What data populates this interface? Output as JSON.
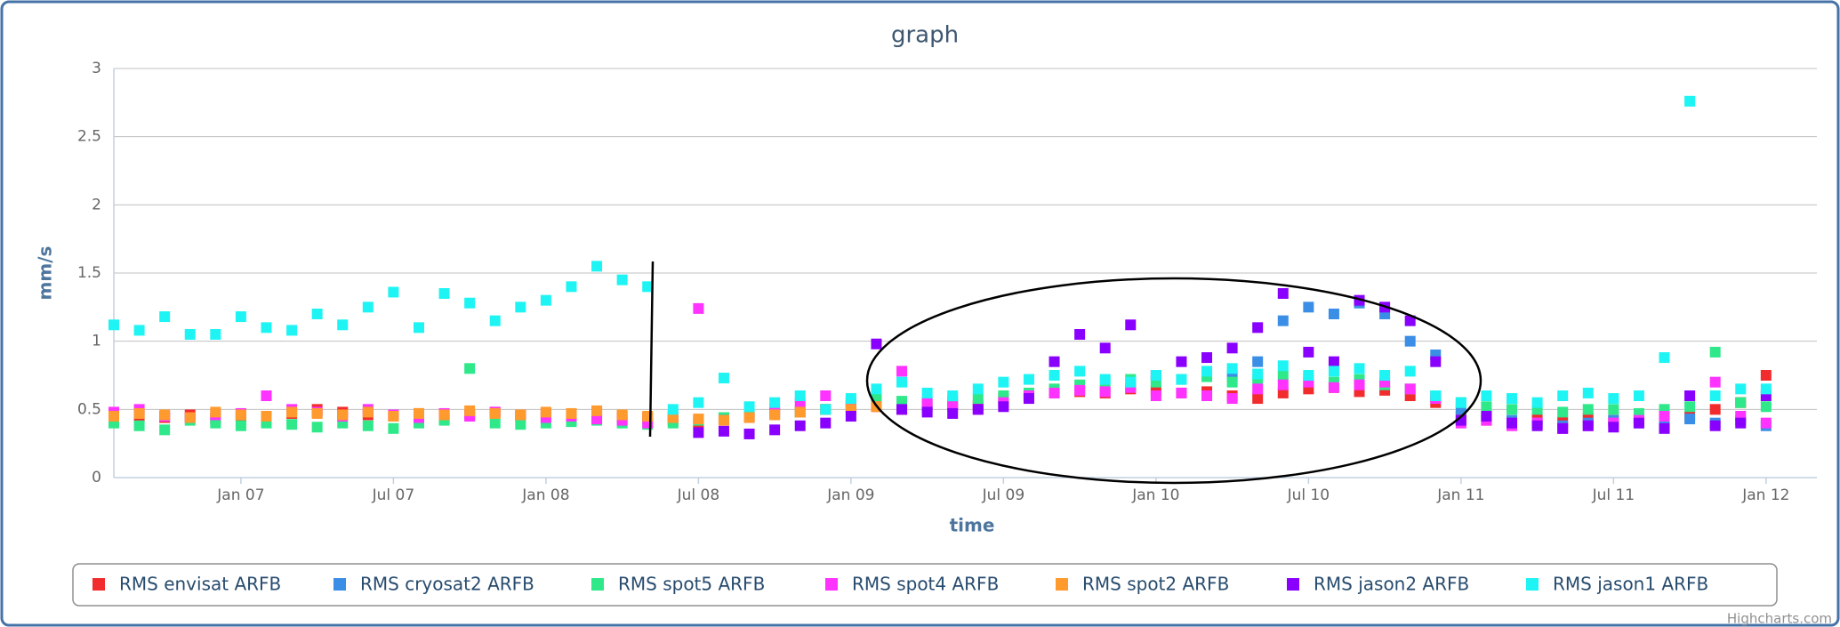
{
  "chart_data": {
    "type": "scatter",
    "title": "graph",
    "x_label": "time",
    "y_label": "mm/s",
    "credit": "Highcharts.com",
    "x": [
      "2006-08",
      "2006-09",
      "2006-10",
      "2006-11",
      "2006-12",
      "2007-01",
      "2007-02",
      "2007-03",
      "2007-04",
      "2007-05",
      "2007-06",
      "2007-07",
      "2007-08",
      "2007-09",
      "2007-10",
      "2007-11",
      "2007-12",
      "2008-01",
      "2008-02",
      "2008-03",
      "2008-04",
      "2008-05",
      "2008-06",
      "2008-07",
      "2008-08",
      "2008-09",
      "2008-10",
      "2008-11",
      "2008-12",
      "2009-01",
      "2009-02",
      "2009-03",
      "2009-04",
      "2009-05",
      "2009-06",
      "2009-07",
      "2009-08",
      "2009-09",
      "2009-10",
      "2009-11",
      "2009-12",
      "2010-01",
      "2010-02",
      "2010-03",
      "2010-04",
      "2010-05",
      "2010-06",
      "2010-07",
      "2010-08",
      "2010-09",
      "2010-10",
      "2010-11",
      "2010-12",
      "2011-01",
      "2011-02",
      "2011-03",
      "2011-04",
      "2011-05",
      "2011-06",
      "2011-07",
      "2011-08",
      "2011-09",
      "2011-10",
      "2011-11",
      "2011-12",
      "2012-01"
    ],
    "xlim": [
      "2006-08",
      "2012-03"
    ],
    "xticks": [
      {
        "value": "2007-01",
        "label": "Jan 07"
      },
      {
        "value": "2007-07",
        "label": "Jul 07"
      },
      {
        "value": "2008-01",
        "label": "Jan 08"
      },
      {
        "value": "2008-07",
        "label": "Jul 08"
      },
      {
        "value": "2009-01",
        "label": "Jan 09"
      },
      {
        "value": "2009-07",
        "label": "Jul 09"
      },
      {
        "value": "2010-01",
        "label": "Jan 10"
      },
      {
        "value": "2010-07",
        "label": "Jul 10"
      },
      {
        "value": "2011-01",
        "label": "Jan 11"
      },
      {
        "value": "2011-07",
        "label": "Jul 11"
      },
      {
        "value": "2012-01",
        "label": "Jan 12"
      }
    ],
    "ylim": [
      0,
      3
    ],
    "yticks": [
      0,
      0.5,
      1,
      1.5,
      2,
      2.5,
      3
    ],
    "grid": true,
    "legend": "bottom",
    "series": [
      {
        "name": "RMS envisat ARFB",
        "color": "#f22c2c",
        "values": [
          0.42,
          0.45,
          0.44,
          0.46,
          0.43,
          0.45,
          0.44,
          0.47,
          0.5,
          0.48,
          0.46,
          0.45,
          0.47,
          0.44,
          0.46,
          0.48,
          0.45,
          0.47,
          0.46,
          0.48,
          0.45,
          0.44,
          0.42,
          0.4,
          0.43,
          0.45,
          0.47,
          0.48,
          0.5,
          0.52,
          0.55,
          0.5,
          0.52,
          0.54,
          0.53,
          0.58,
          0.6,
          0.62,
          0.63,
          0.62,
          0.65,
          0.64,
          0.62,
          0.63,
          0.6,
          0.58,
          0.62,
          0.65,
          0.66,
          0.63,
          0.64,
          0.6,
          0.55,
          0.45,
          0.42,
          0.4,
          0.43,
          0.41,
          0.44,
          0.42,
          0.43,
          0.4,
          0.45,
          0.5,
          0.55,
          0.75
        ]
      },
      {
        "name": "RMS cryosat2 ARFB",
        "color": "#3a8ee6",
        "values": [
          null,
          null,
          null,
          null,
          null,
          null,
          null,
          null,
          null,
          null,
          null,
          null,
          null,
          null,
          null,
          null,
          null,
          null,
          null,
          null,
          null,
          null,
          null,
          null,
          null,
          null,
          null,
          null,
          null,
          null,
          null,
          null,
          null,
          null,
          null,
          null,
          null,
          null,
          null,
          null,
          null,
          null,
          null,
          null,
          0.75,
          0.85,
          1.15,
          1.25,
          1.2,
          1.28,
          1.2,
          1.0,
          0.9,
          0.5,
          0.45,
          0.42,
          0.4,
          0.38,
          0.4,
          0.42,
          0.4,
          0.41,
          0.43,
          0.4,
          0.42,
          0.38
        ]
      },
      {
        "name": "RMS spot5 ARFB",
        "color": "#2ee88a",
        "values": [
          0.4,
          0.38,
          0.35,
          0.42,
          0.4,
          0.38,
          0.4,
          0.39,
          0.37,
          0.4,
          0.38,
          0.36,
          0.4,
          0.42,
          0.8,
          0.4,
          0.39,
          0.4,
          0.41,
          0.42,
          0.4,
          0.39,
          0.4,
          0.42,
          0.44,
          0.45,
          0.47,
          0.48,
          0.5,
          0.55,
          0.58,
          0.56,
          0.55,
          0.57,
          0.58,
          0.6,
          0.62,
          0.65,
          0.68,
          0.7,
          0.72,
          0.7,
          0.72,
          0.74,
          0.7,
          0.72,
          0.75,
          0.73,
          0.7,
          0.72,
          0.68,
          0.65,
          0.6,
          0.55,
          0.52,
          0.5,
          0.5,
          0.48,
          0.5,
          0.5,
          0.47,
          0.5,
          0.52,
          0.92,
          0.55,
          0.52
        ]
      },
      {
        "name": "RMS spot4 ARFB",
        "color": "#ff33ff",
        "values": [
          0.48,
          0.5,
          0.45,
          0.44,
          0.46,
          0.47,
          0.6,
          0.5,
          0.48,
          0.45,
          0.5,
          0.46,
          0.44,
          0.47,
          0.45,
          0.48,
          0.46,
          0.44,
          0.45,
          0.43,
          0.42,
          0.4,
          0.45,
          1.24,
          0.42,
          0.44,
          0.5,
          0.55,
          0.6,
          0.55,
          0.52,
          0.78,
          0.55,
          0.52,
          0.5,
          0.55,
          0.6,
          0.62,
          0.64,
          0.63,
          0.66,
          0.6,
          0.62,
          0.6,
          0.58,
          0.65,
          0.68,
          0.7,
          0.66,
          0.68,
          0.7,
          0.65,
          0.58,
          0.4,
          0.42,
          0.38,
          0.4,
          0.36,
          0.38,
          0.4,
          0.42,
          0.45,
          0.6,
          0.7,
          0.45,
          0.4
        ]
      },
      {
        "name": "RMS spot2 ARFB",
        "color": "#ff9a2e",
        "values": [
          0.45,
          0.47,
          0.46,
          0.44,
          0.48,
          0.46,
          0.45,
          0.48,
          0.47,
          0.46,
          0.48,
          0.45,
          0.47,
          0.46,
          0.49,
          0.47,
          0.46,
          0.48,
          0.47,
          0.49,
          0.46,
          0.45,
          0.44,
          0.43,
          0.42,
          0.44,
          0.46,
          0.48,
          0.5,
          0.5,
          0.52,
          null,
          null,
          null,
          null,
          null,
          null,
          null,
          null,
          null,
          null,
          null,
          null,
          null,
          null,
          null,
          null,
          null,
          null,
          null,
          null,
          null,
          null,
          null,
          null,
          null,
          null,
          null,
          null,
          null,
          null,
          null,
          null,
          null,
          null,
          null
        ]
      },
      {
        "name": "RMS jason2 ARFB",
        "color": "#8a00ff",
        "values": [
          null,
          null,
          null,
          null,
          null,
          null,
          null,
          null,
          null,
          null,
          null,
          null,
          null,
          null,
          null,
          null,
          null,
          null,
          null,
          null,
          null,
          null,
          null,
          0.33,
          0.34,
          0.32,
          0.35,
          0.38,
          0.4,
          0.45,
          0.98,
          0.5,
          0.48,
          0.47,
          0.5,
          0.52,
          0.58,
          0.85,
          1.05,
          0.95,
          1.12,
          0.75,
          0.85,
          0.88,
          0.95,
          1.1,
          1.35,
          0.92,
          0.85,
          1.3,
          1.25,
          1.15,
          0.85,
          0.42,
          0.45,
          0.4,
          0.38,
          0.36,
          0.38,
          0.37,
          0.4,
          0.36,
          0.6,
          0.38,
          0.4,
          0.6
        ]
      },
      {
        "name": "RMS jason1 ARFB",
        "color": "#1ef4f4",
        "values": [
          1.12,
          1.08,
          1.18,
          1.05,
          1.05,
          1.18,
          1.1,
          1.08,
          1.2,
          1.12,
          1.25,
          1.36,
          1.1,
          1.35,
          1.28,
          1.15,
          1.25,
          1.3,
          1.4,
          1.55,
          1.45,
          1.4,
          0.5,
          0.55,
          0.73,
          0.52,
          0.55,
          0.6,
          0.5,
          0.58,
          0.65,
          0.7,
          0.62,
          0.6,
          0.65,
          0.7,
          0.72,
          0.75,
          0.78,
          0.72,
          0.7,
          0.75,
          0.72,
          0.78,
          0.8,
          0.76,
          0.82,
          0.75,
          0.78,
          0.8,
          0.75,
          0.78,
          0.6,
          0.55,
          0.6,
          0.58,
          0.55,
          0.6,
          0.62,
          0.58,
          0.6,
          0.88,
          2.76,
          0.6,
          0.65,
          0.65
        ]
      }
    ]
  }
}
